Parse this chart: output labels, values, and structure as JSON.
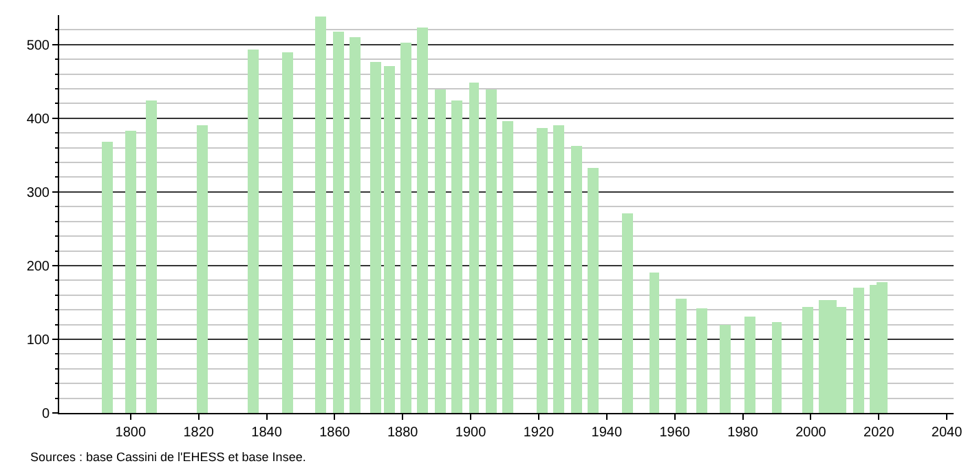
{
  "chart_data": {
    "type": "bar",
    "x": [
      1793,
      1800,
      1806,
      1821,
      1836,
      1846,
      1856,
      1861,
      1866,
      1872,
      1876,
      1881,
      1886,
      1891,
      1896,
      1901,
      1906,
      1911,
      1921,
      1926,
      1931,
      1936,
      1946,
      1954,
      1962,
      1968,
      1975,
      1982,
      1990,
      1999,
      2004,
      2006,
      2009,
      2014,
      2019,
      2021
    ],
    "values": [
      369,
      383,
      424,
      391,
      494,
      489,
      538,
      517,
      510,
      476,
      471,
      502,
      523,
      440,
      425,
      449,
      440,
      396,
      387,
      391,
      362,
      333,
      271,
      191,
      155,
      142,
      120,
      131,
      124,
      144,
      153,
      153,
      144,
      170,
      174,
      178
    ],
    "color": "#b3e6b3",
    "xlim": [
      1779,
      2042
    ],
    "xticks": [
      1800,
      1820,
      1840,
      1860,
      1880,
      1900,
      1920,
      1940,
      1960,
      1980,
      2000,
      2020,
      2040
    ],
    "ylim": [
      0,
      540
    ],
    "yticks": [
      0,
      {
        "value": 20,
        "label": null
      },
      {
        "value": 40,
        "label": null
      },
      {
        "value": 60,
        "label": null
      },
      {
        "value": 80,
        "label": null
      },
      100,
      {
        "value": 120,
        "label": null
      },
      {
        "value": 140,
        "label": null
      },
      {
        "value": 160,
        "label": null
      },
      {
        "value": 180,
        "label": null
      },
      200,
      {
        "value": 220,
        "label": null
      },
      {
        "value": 240,
        "label": null
      },
      {
        "value": 260,
        "label": null
      },
      {
        "value": 280,
        "label": null
      },
      300,
      {
        "value": 320,
        "label": null
      },
      {
        "value": 340,
        "label": null
      },
      {
        "value": 360,
        "label": null
      },
      {
        "value": 380,
        "label": null
      },
      400,
      {
        "value": 420,
        "label": null
      },
      {
        "value": 440,
        "label": null
      },
      {
        "value": 460,
        "label": null
      },
      {
        "value": 480,
        "label": null
      },
      500,
      {
        "value": 520,
        "label": null
      }
    ],
    "grid": "y",
    "annotations": [
      "Sources : base Cassini de l'EHESS et base Insee."
    ]
  }
}
